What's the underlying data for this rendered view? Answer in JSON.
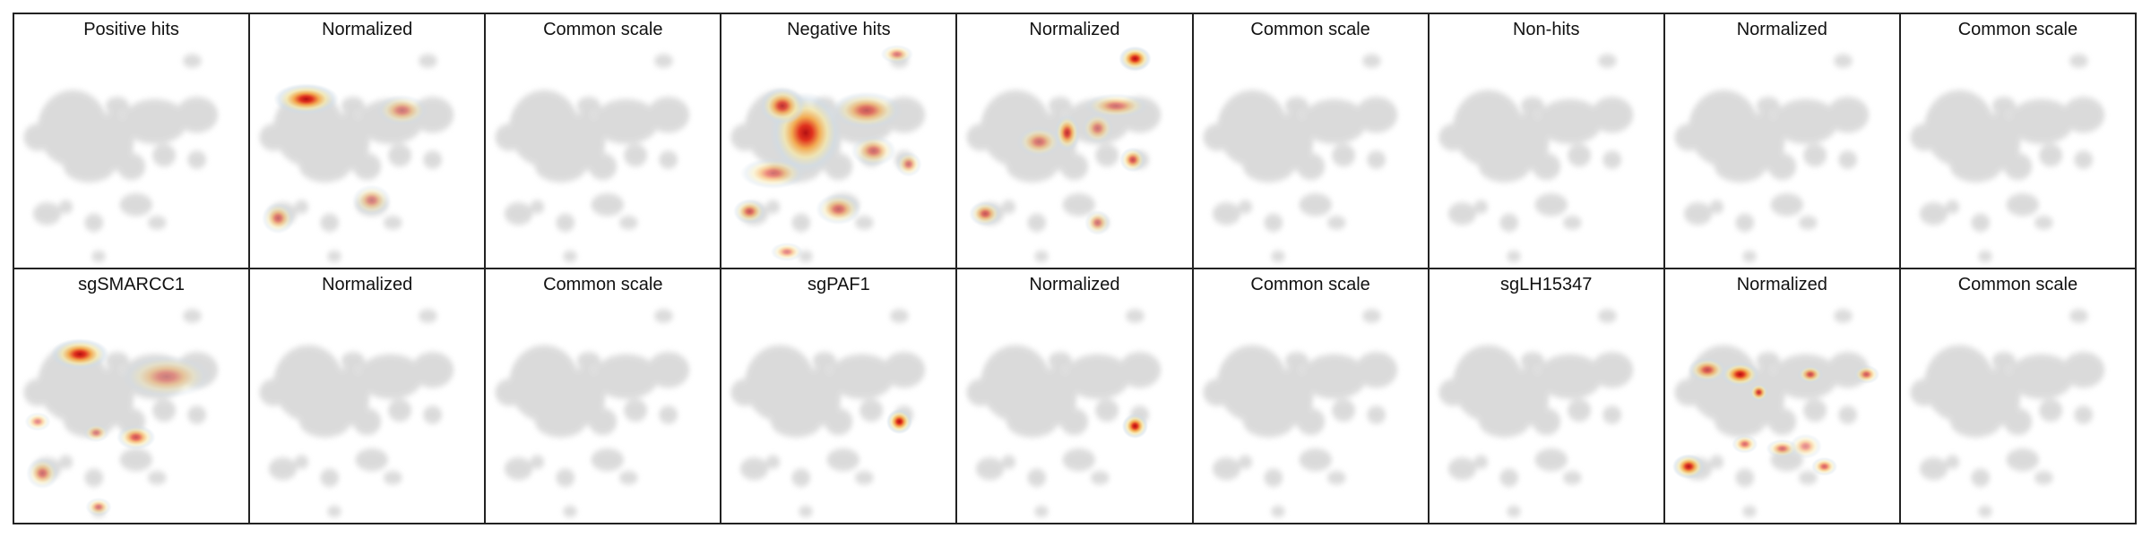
{
  "chart_data": {
    "type": "heatmap",
    "layout": {
      "rows": 2,
      "cols": 9
    },
    "base_color": "#d9d9d9",
    "colormap": [
      "#cfdce6",
      "#f5e7a8",
      "#f3a64a",
      "#e0321e",
      "#b30f12"
    ],
    "panels": [
      {
        "title": "Positive hits",
        "hotspots": []
      },
      {
        "title": "Normalized",
        "hotspots": [
          {
            "x": 0.24,
            "y": 0.25,
            "sx": 0.1,
            "sy": 0.05,
            "w": 1.0
          },
          {
            "x": 0.12,
            "y": 0.78,
            "sx": 0.05,
            "sy": 0.05,
            "w": 0.35
          },
          {
            "x": 0.65,
            "y": 0.3,
            "sx": 0.08,
            "sy": 0.05,
            "w": 0.22
          },
          {
            "x": 0.52,
            "y": 0.7,
            "sx": 0.06,
            "sy": 0.05,
            "w": 0.18
          }
        ]
      },
      {
        "title": "Common scale",
        "hotspots": []
      },
      {
        "title": "Negative hits",
        "hotspots": [
          {
            "x": 0.36,
            "y": 0.4,
            "sx": 0.11,
            "sy": 0.13,
            "w": 1.0
          },
          {
            "x": 0.26,
            "y": 0.28,
            "sx": 0.07,
            "sy": 0.06,
            "w": 0.75
          },
          {
            "x": 0.62,
            "y": 0.3,
            "sx": 0.11,
            "sy": 0.06,
            "w": 0.45
          },
          {
            "x": 0.22,
            "y": 0.58,
            "sx": 0.1,
            "sy": 0.05,
            "w": 0.35
          },
          {
            "x": 0.12,
            "y": 0.75,
            "sx": 0.05,
            "sy": 0.04,
            "w": 0.45
          },
          {
            "x": 0.65,
            "y": 0.48,
            "sx": 0.07,
            "sy": 0.05,
            "w": 0.32
          },
          {
            "x": 0.75,
            "y": 0.05,
            "sx": 0.05,
            "sy": 0.03,
            "w": 0.28
          },
          {
            "x": 0.5,
            "y": 0.74,
            "sx": 0.07,
            "sy": 0.05,
            "w": 0.35
          },
          {
            "x": 0.28,
            "y": 0.93,
            "sx": 0.05,
            "sy": 0.03,
            "w": 0.25
          },
          {
            "x": 0.8,
            "y": 0.54,
            "sx": 0.04,
            "sy": 0.04,
            "w": 0.28
          }
        ]
      },
      {
        "title": "Normalized",
        "hotspots": [
          {
            "x": 0.76,
            "y": 0.07,
            "sx": 0.05,
            "sy": 0.04,
            "w": 1.0
          },
          {
            "x": 0.47,
            "y": 0.4,
            "sx": 0.04,
            "sy": 0.06,
            "w": 0.75
          },
          {
            "x": 0.75,
            "y": 0.52,
            "sx": 0.04,
            "sy": 0.04,
            "w": 0.55
          },
          {
            "x": 0.12,
            "y": 0.76,
            "sx": 0.05,
            "sy": 0.04,
            "w": 0.45
          },
          {
            "x": 0.68,
            "y": 0.28,
            "sx": 0.1,
            "sy": 0.04,
            "w": 0.3
          },
          {
            "x": 0.35,
            "y": 0.44,
            "sx": 0.07,
            "sy": 0.05,
            "w": 0.28
          },
          {
            "x": 0.6,
            "y": 0.38,
            "sx": 0.05,
            "sy": 0.05,
            "w": 0.25
          },
          {
            "x": 0.6,
            "y": 0.8,
            "sx": 0.04,
            "sy": 0.04,
            "w": 0.25
          }
        ]
      },
      {
        "title": "Common scale",
        "hotspots": []
      },
      {
        "title": "Non-hits",
        "hotspots": []
      },
      {
        "title": "Normalized",
        "hotspots": []
      },
      {
        "title": "Common scale",
        "hotspots": []
      },
      {
        "title": "sgSMARCC1",
        "hotspots": [
          {
            "x": 0.28,
            "y": 0.25,
            "sx": 0.09,
            "sy": 0.05,
            "w": 1.0
          },
          {
            "x": 0.52,
            "y": 0.62,
            "sx": 0.06,
            "sy": 0.04,
            "w": 0.55
          },
          {
            "x": 0.65,
            "y": 0.35,
            "sx": 0.14,
            "sy": 0.07,
            "w": 0.18
          },
          {
            "x": 0.12,
            "y": 0.78,
            "sx": 0.05,
            "sy": 0.05,
            "w": 0.3
          },
          {
            "x": 0.1,
            "y": 0.55,
            "sx": 0.04,
            "sy": 0.03,
            "w": 0.22
          },
          {
            "x": 0.36,
            "y": 0.93,
            "sx": 0.04,
            "sy": 0.03,
            "w": 0.28
          },
          {
            "x": 0.35,
            "y": 0.6,
            "sx": 0.04,
            "sy": 0.03,
            "w": 0.2
          }
        ]
      },
      {
        "title": "Normalized",
        "hotspots": []
      },
      {
        "title": "Common scale",
        "hotspots": []
      },
      {
        "title": "sgPAF1",
        "hotspots": [
          {
            "x": 0.76,
            "y": 0.55,
            "sx": 0.04,
            "sy": 0.04,
            "w": 1.0
          }
        ]
      },
      {
        "title": "Normalized",
        "hotspots": [
          {
            "x": 0.76,
            "y": 0.57,
            "sx": 0.04,
            "sy": 0.04,
            "w": 1.0
          }
        ]
      },
      {
        "title": "Common scale",
        "hotspots": []
      },
      {
        "title": "sgLH15347",
        "hotspots": []
      },
      {
        "title": "Normalized",
        "hotspots": [
          {
            "x": 0.32,
            "y": 0.34,
            "sx": 0.06,
            "sy": 0.04,
            "w": 1.0
          },
          {
            "x": 0.18,
            "y": 0.32,
            "sx": 0.06,
            "sy": 0.04,
            "w": 0.55
          },
          {
            "x": 0.4,
            "y": 0.42,
            "sx": 0.03,
            "sy": 0.03,
            "w": 0.75
          },
          {
            "x": 0.62,
            "y": 0.34,
            "sx": 0.04,
            "sy": 0.03,
            "w": 0.55
          },
          {
            "x": 0.86,
            "y": 0.34,
            "sx": 0.04,
            "sy": 0.03,
            "w": 0.45
          },
          {
            "x": 0.1,
            "y": 0.75,
            "sx": 0.05,
            "sy": 0.04,
            "w": 0.95
          },
          {
            "x": 0.34,
            "y": 0.65,
            "sx": 0.04,
            "sy": 0.03,
            "w": 0.4
          },
          {
            "x": 0.5,
            "y": 0.67,
            "sx": 0.05,
            "sy": 0.03,
            "w": 0.35
          },
          {
            "x": 0.68,
            "y": 0.75,
            "sx": 0.04,
            "sy": 0.03,
            "w": 0.45
          },
          {
            "x": 0.6,
            "y": 0.66,
            "sx": 0.05,
            "sy": 0.04,
            "w": 0.2
          }
        ]
      },
      {
        "title": "Common scale",
        "hotspots": []
      }
    ]
  }
}
